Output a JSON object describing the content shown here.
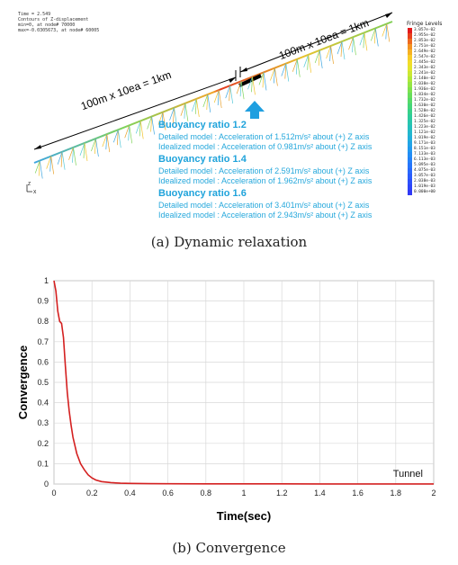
{
  "panel_a": {
    "meta_lines": [
      "Time =      2.549",
      "Contours of Z-displacement",
      "min=0, at node# 70000",
      "max=-0.0305673, at node# 60005"
    ],
    "length_label_left": "100m x 10ea = 1km",
    "length_label_right": "100m x 10ea = 1km",
    "legend_title": "Fringe Levels",
    "legend_levels": [
      "3.057e-02",
      "2.955e-02",
      "2.853e-02",
      "2.751e-02",
      "2.649e-02",
      "2.547e-02",
      "2.445e-02",
      "2.343e-02",
      "2.241e-02",
      "2.140e-02",
      "2.038e-02",
      "1.936e-02",
      "1.834e-02",
      "1.732e-02",
      "1.630e-02",
      "1.528e-02",
      "1.426e-02",
      "1.325e-02",
      "1.223e-02",
      "1.121e-02",
      "1.019e-02",
      "9.171e-03",
      "8.151e-03",
      "7.133e-03",
      "6.113e-03",
      "5.095e-03",
      "4.075e-03",
      "3.057e-03",
      "2.038e-03",
      "1.019e-03",
      "0.000e+00"
    ],
    "legend_colors": [
      "#e31a1c",
      "#e8411d",
      "#ee6a1f",
      "#f39321",
      "#f6b123",
      "#f8cc27",
      "#f2dc2a",
      "#e2e52e",
      "#cbe834",
      "#b1e83b",
      "#97e645",
      "#7fe24f",
      "#69de5b",
      "#56da69",
      "#45d678",
      "#38d189",
      "#2ecc9b",
      "#28c6ad",
      "#25bfbe",
      "#23b7cd",
      "#22aedb",
      "#22a4e6",
      "#2299ef",
      "#228df5",
      "#2481f9",
      "#2675fb",
      "#2868fc",
      "#2a5cfc",
      "#2c50fb",
      "#2e45f9",
      "#3039f6"
    ],
    "annotations": [
      {
        "heading": "Buoyancy ratio 1.2",
        "detailed": "Detailed model : Acceleration of 1.512m/s² about (+) Z axis",
        "idealized": "Idealized model : Acceleration of 0.981m/s² about (+) Z axis"
      },
      {
        "heading": "Buoyancy ratio 1.4",
        "detailed": "Detailed model : Acceleration of 2.591m/s² about (+) Z axis",
        "idealized": "Idealized model : Acceleration of 1.962m/s² about (+) Z axis"
      },
      {
        "heading": "Buoyancy ratio 1.6",
        "detailed": "Detailed model : Acceleration of 3.401m/s² about (+) Z axis",
        "idealized": "Idealized model : Acceleration of 2.943m/s² about (+) Z axis"
      }
    ],
    "axis_triad_z": "Z",
    "axis_triad_x": "X",
    "arrow_color": "#1f9fe0",
    "caption": "(a) Dynamic relaxation"
  },
  "chart_data": {
    "type": "line",
    "title": "",
    "xlabel": "Time(sec)",
    "ylabel": "Convergence",
    "xlim": [
      0,
      2
    ],
    "ylim": [
      0,
      1
    ],
    "x_ticks": [
      "0",
      "0.2",
      "0.4",
      "0.6",
      "0.8",
      "1",
      "1.2",
      "1.4",
      "1.6",
      "1.8",
      "2"
    ],
    "y_ticks": [
      "0",
      "0.1",
      "0.2",
      "0.3",
      "0.4",
      "0.5",
      "0.6",
      "0.7",
      "0.8",
      "0.9",
      "1"
    ],
    "grid": true,
    "series": [
      {
        "name": "Tunnel",
        "color": "#d42020",
        "x": [
          0,
          0.01,
          0.02,
          0.03,
          0.04,
          0.05,
          0.06,
          0.07,
          0.08,
          0.09,
          0.1,
          0.12,
          0.14,
          0.16,
          0.18,
          0.2,
          0.22,
          0.25,
          0.3,
          0.35,
          0.4,
          0.5,
          0.6,
          0.8,
          1.0,
          1.2,
          1.4,
          1.6,
          1.8,
          2.0
        ],
        "y": [
          1.0,
          0.95,
          0.85,
          0.8,
          0.79,
          0.72,
          0.58,
          0.45,
          0.36,
          0.29,
          0.23,
          0.15,
          0.1,
          0.07,
          0.045,
          0.03,
          0.02,
          0.012,
          0.007,
          0.004,
          0.003,
          0.002,
          0.0015,
          0.001,
          0.0008,
          0.0006,
          0.0005,
          0.0004,
          0.0003,
          0.0003
        ]
      }
    ],
    "legend_position": "inside-bottom-right"
  },
  "panel_b": {
    "caption": "(b) Convergence"
  }
}
